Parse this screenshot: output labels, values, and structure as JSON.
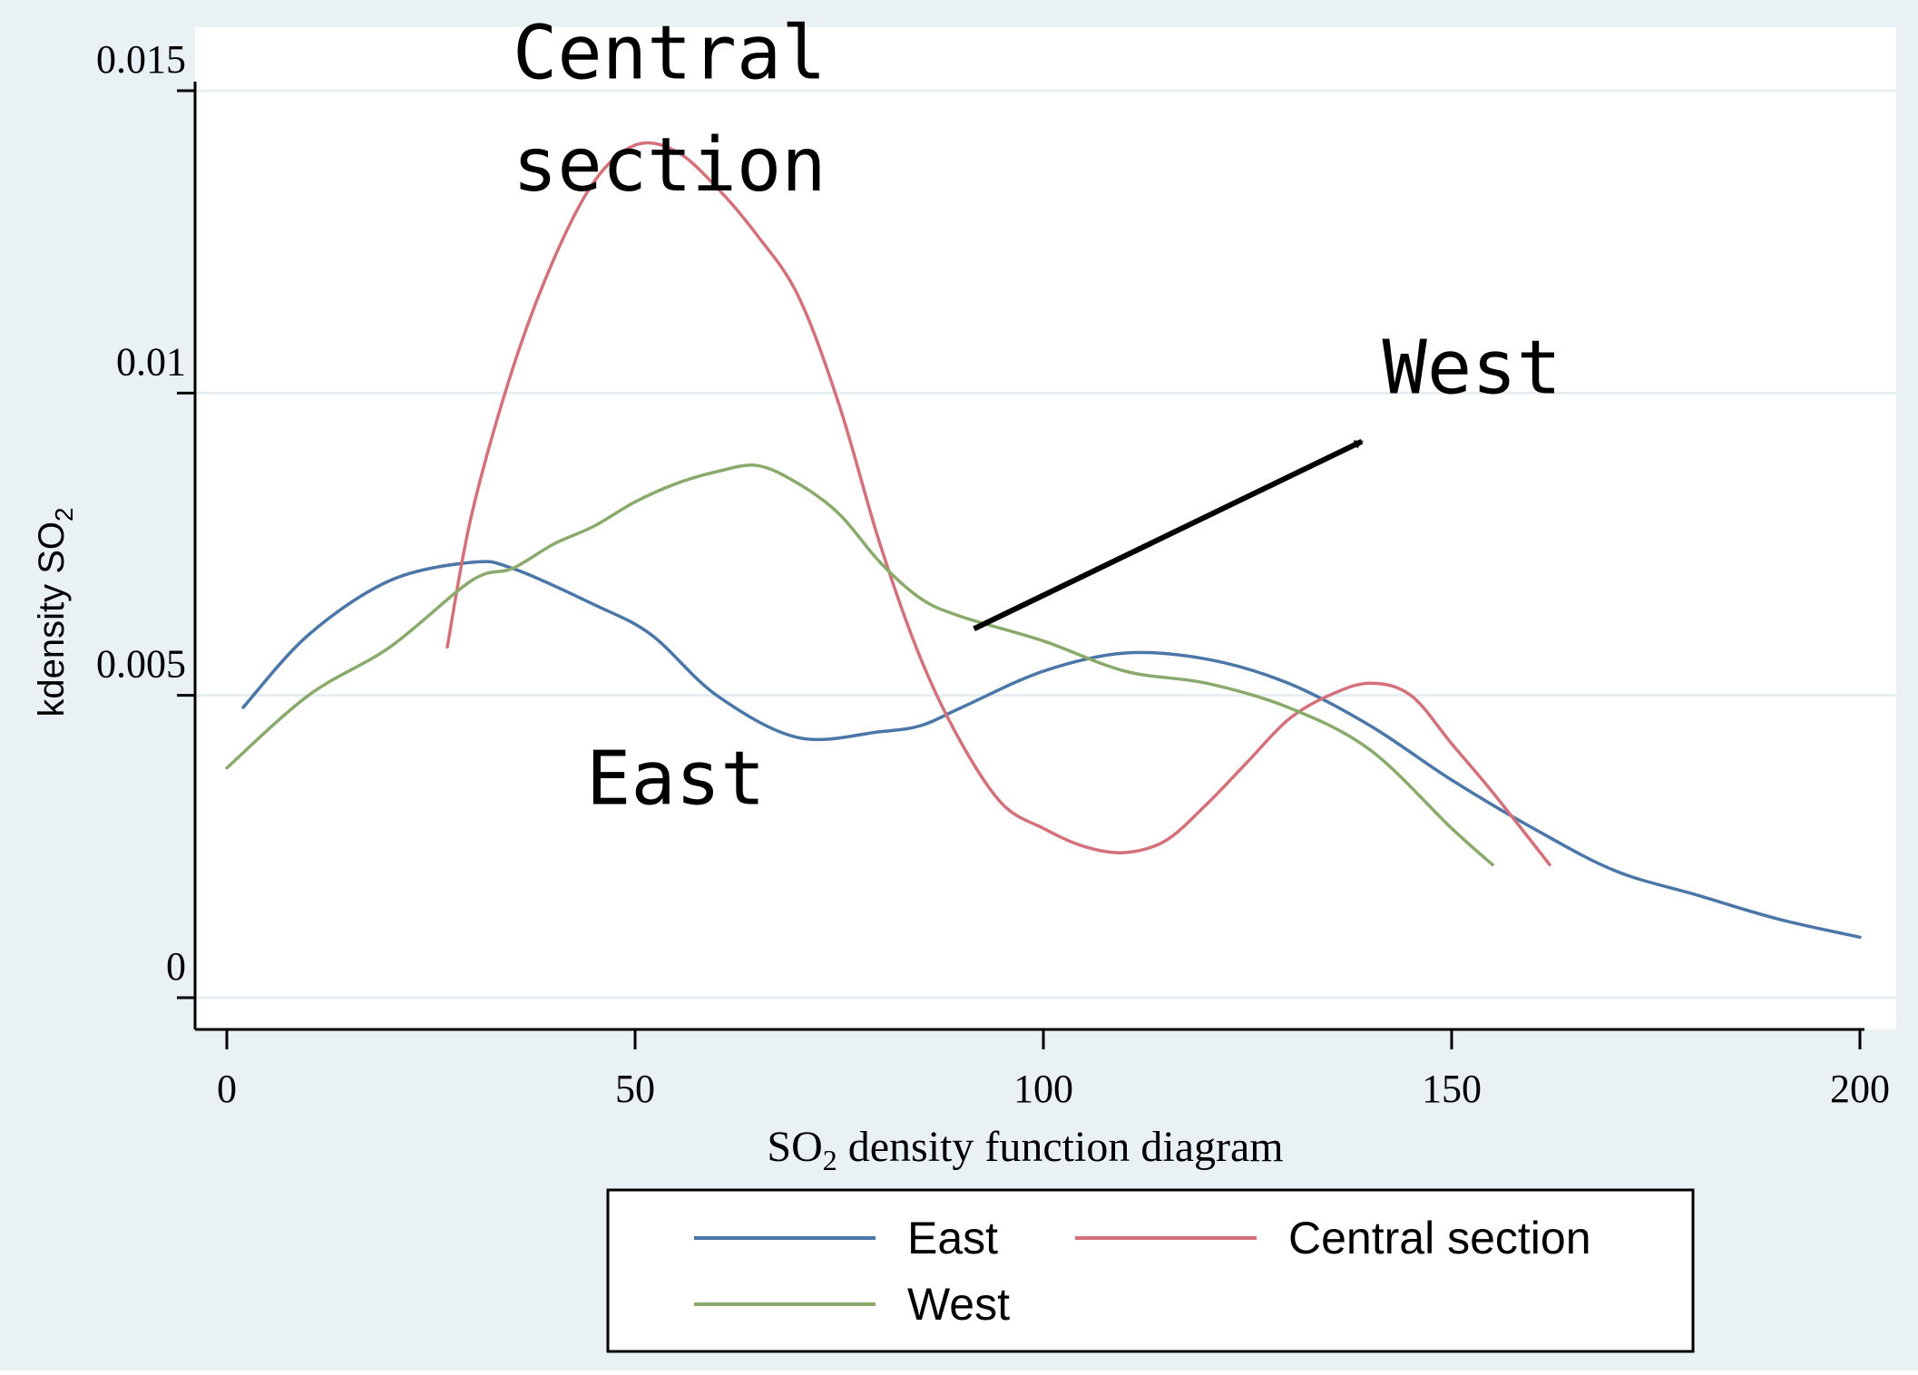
{
  "chart_data": {
    "type": "line",
    "xlabel": "SO",
    "xlabel_sub": "2",
    "xlabel_rest": " density function diagram",
    "ylabel": "kdensity SO",
    "ylabel_sub": "2",
    "xlim": [
      0,
      200
    ],
    "ylim": [
      0,
      0.015
    ],
    "xticks": [
      0,
      50,
      100,
      150,
      200
    ],
    "xtick_labels": [
      "0",
      "50",
      "100",
      "150",
      "200"
    ],
    "yticks": [
      0,
      0.005,
      0.01,
      0.015
    ],
    "ytick_labels": [
      "0",
      "0.005",
      "0.01",
      "0.015"
    ],
    "grid": "horizontal",
    "legend_position": "bottom",
    "series": [
      {
        "name": "East",
        "color": "#4a76a8",
        "x": [
          2,
          10,
          20,
          30,
          35,
          45,
          52,
          60,
          70,
          80,
          85,
          90,
          100,
          110,
          120,
          130,
          140,
          150,
          160,
          170,
          180,
          190,
          200
        ],
        "y": [
          0.0048,
          0.006,
          0.0069,
          0.0072,
          0.0071,
          0.0065,
          0.006,
          0.005,
          0.0043,
          0.0044,
          0.0045,
          0.0048,
          0.0054,
          0.0057,
          0.0056,
          0.0052,
          0.0045,
          0.0036,
          0.0028,
          0.0021,
          0.0017,
          0.0013,
          0.001
        ]
      },
      {
        "name": "Central section",
        "color": "#d4707a",
        "x": [
          27,
          30,
          35,
          40,
          45,
          50,
          55,
          60,
          65,
          70,
          75,
          80,
          85,
          90,
          95,
          100,
          105,
          110,
          115,
          120,
          125,
          130,
          135,
          140,
          145,
          150,
          155,
          162
        ],
        "y": [
          0.0058,
          0.008,
          0.0104,
          0.0122,
          0.0135,
          0.0141,
          0.014,
          0.0134,
          0.0126,
          0.0116,
          0.0098,
          0.0075,
          0.0056,
          0.0042,
          0.0032,
          0.0028,
          0.0025,
          0.0024,
          0.0026,
          0.0032,
          0.0039,
          0.0046,
          0.005,
          0.0052,
          0.005,
          0.0042,
          0.0034,
          0.0022
        ]
      },
      {
        "name": "West",
        "color": "#8aaa6c",
        "x": [
          0,
          10,
          20,
          30,
          35,
          40,
          45,
          50,
          55,
          60,
          65,
          70,
          75,
          80,
          85,
          90,
          100,
          110,
          120,
          130,
          140,
          150,
          155
        ],
        "y": [
          0.0038,
          0.005,
          0.0058,
          0.0069,
          0.0071,
          0.0075,
          0.0078,
          0.0082,
          0.0085,
          0.0087,
          0.0088,
          0.0085,
          0.008,
          0.0072,
          0.0066,
          0.0063,
          0.0059,
          0.0054,
          0.0052,
          0.0048,
          0.0041,
          0.0028,
          0.0022
        ]
      }
    ],
    "annotations": [
      {
        "text": "Central",
        "x": 35,
        "y": 0.0152
      },
      {
        "text": "section",
        "x": 35,
        "y": 0.01335
      },
      {
        "text": "West",
        "x": 141.5,
        "y": 0.01
      },
      {
        "text": "East",
        "x": 44,
        "y": 0.0032
      }
    ],
    "arrow": {
      "from": [
        91.5,
        0.0061
      ],
      "to": [
        139,
        0.0092
      ]
    }
  },
  "legend": {
    "items": [
      {
        "label": "East",
        "color": "#4a76a8"
      },
      {
        "label": "Central section",
        "color": "#d4707a"
      },
      {
        "label": "West",
        "color": "#8aaa6c"
      }
    ]
  }
}
